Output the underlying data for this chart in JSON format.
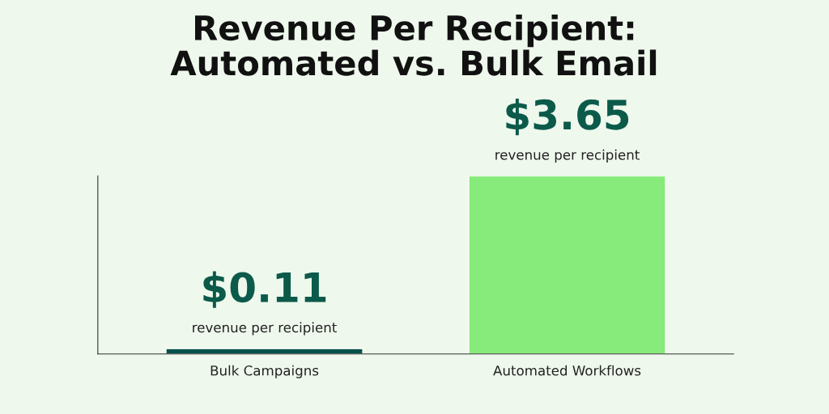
{
  "chart_data": {
    "type": "bar",
    "title": "Revenue Per Recipient:\nAutomated vs. Bulk Email",
    "categories": [
      "Bulk Campaigns",
      "Automated Workflows"
    ],
    "values": [
      0.11,
      3.65
    ],
    "colors": [
      "#03524a",
      "#86eb7b"
    ],
    "value_labels": [
      "$0.11",
      "$3.65"
    ],
    "annotations": [
      {
        "text": "revenue per recipient",
        "x": "Bulk Campaigns",
        "y": 0.11
      },
      {
        "text": "revenue per recipient",
        "x": "Automated Workflows",
        "y": 3.65
      }
    ],
    "grid": false,
    "legend": false
  }
}
